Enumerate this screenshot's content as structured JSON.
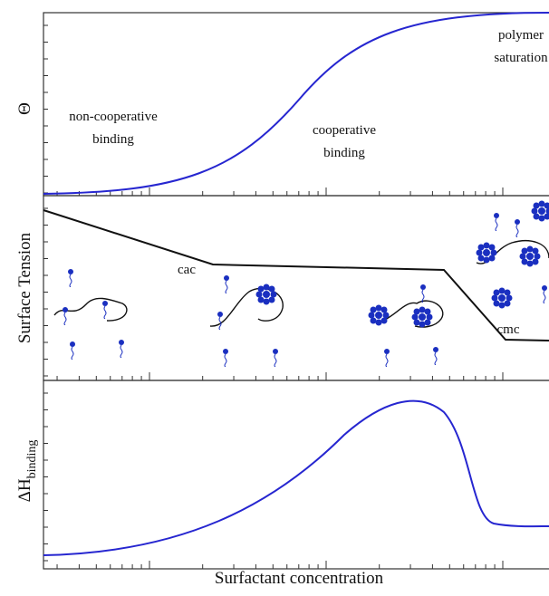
{
  "panels": [
    {
      "y_label": "Θ",
      "annotations": [
        {
          "lines": [
            "non-cooperative",
            "binding"
          ]
        },
        {
          "lines": [
            "cooperative",
            "binding"
          ]
        },
        {
          "lines": [
            "polymer",
            "saturation"
          ]
        }
      ]
    },
    {
      "y_label": "Surface Tension",
      "annotations": [
        {
          "lines": [
            "cac"
          ]
        },
        {
          "lines": [
            "cmc"
          ]
        }
      ]
    },
    {
      "y_label": "ΔH",
      "y_label_sub": "binding",
      "annotations": []
    }
  ],
  "x_label": "Surfactant concentration"
}
